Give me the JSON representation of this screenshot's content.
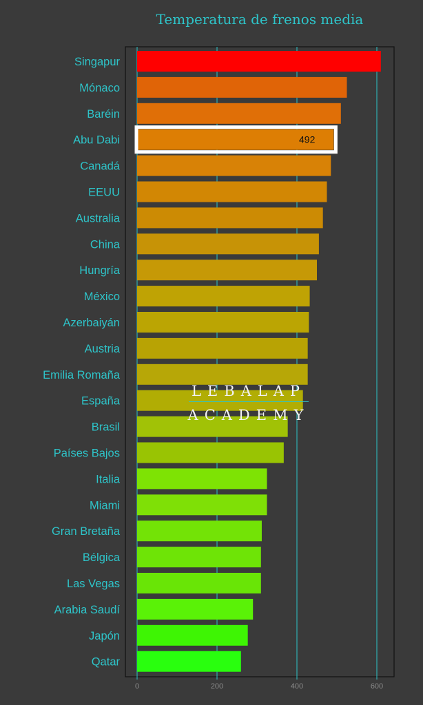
{
  "chart_data": {
    "type": "bar",
    "orientation": "horizontal",
    "title": "Temperatura de frenos media",
    "xlabel": "",
    "ylabel": "",
    "xlim": [
      0,
      660
    ],
    "xticks": [
      0,
      200,
      400,
      600
    ],
    "grid": true,
    "categories": [
      "Singapur",
      "Mónaco",
      "Baréin",
      "Abu Dabi",
      "Canadá",
      "EEUU",
      "Australia",
      "China",
      "Hungría",
      "México",
      "Azerbaiyán",
      "Austria",
      "Emilia Romaña",
      "España",
      "Brasil",
      "Países Bajos",
      "Italia",
      "Miami",
      "Gran Bretaña",
      "Bélgica",
      "Las Vegas",
      "Arabia Saudí",
      "Japón",
      "Qatar"
    ],
    "values": [
      610,
      525,
      510,
      492,
      485,
      475,
      465,
      455,
      450,
      432,
      430,
      427,
      427,
      415,
      377,
      367,
      325,
      325,
      312,
      310,
      310,
      290,
      277,
      260
    ],
    "bar_colors": [
      "#ff0000",
      "#e06407",
      "#e06f07",
      "#dd7e04",
      "#d88206",
      "#d28704",
      "#cc8b04",
      "#c79306",
      "#c69906",
      "#bfa304",
      "#bba503",
      "#b8a304",
      "#b7a707",
      "#b1ad04",
      "#a1c206",
      "#99c403",
      "#7ee304",
      "#7fe006",
      "#73e306",
      "#6ee406",
      "#69e506",
      "#5af207",
      "#3ef504",
      "#29ff0e"
    ],
    "highlight": {
      "category": "Abu Dabi",
      "label": "492"
    }
  },
  "watermark": {
    "line1": "LEBALAP",
    "line2": "ACADEMY"
  },
  "colors": {
    "background": "#3a3a3a",
    "accent": "#2ec4c9",
    "frame": "#111111",
    "highlight_border": "#ffffff"
  }
}
